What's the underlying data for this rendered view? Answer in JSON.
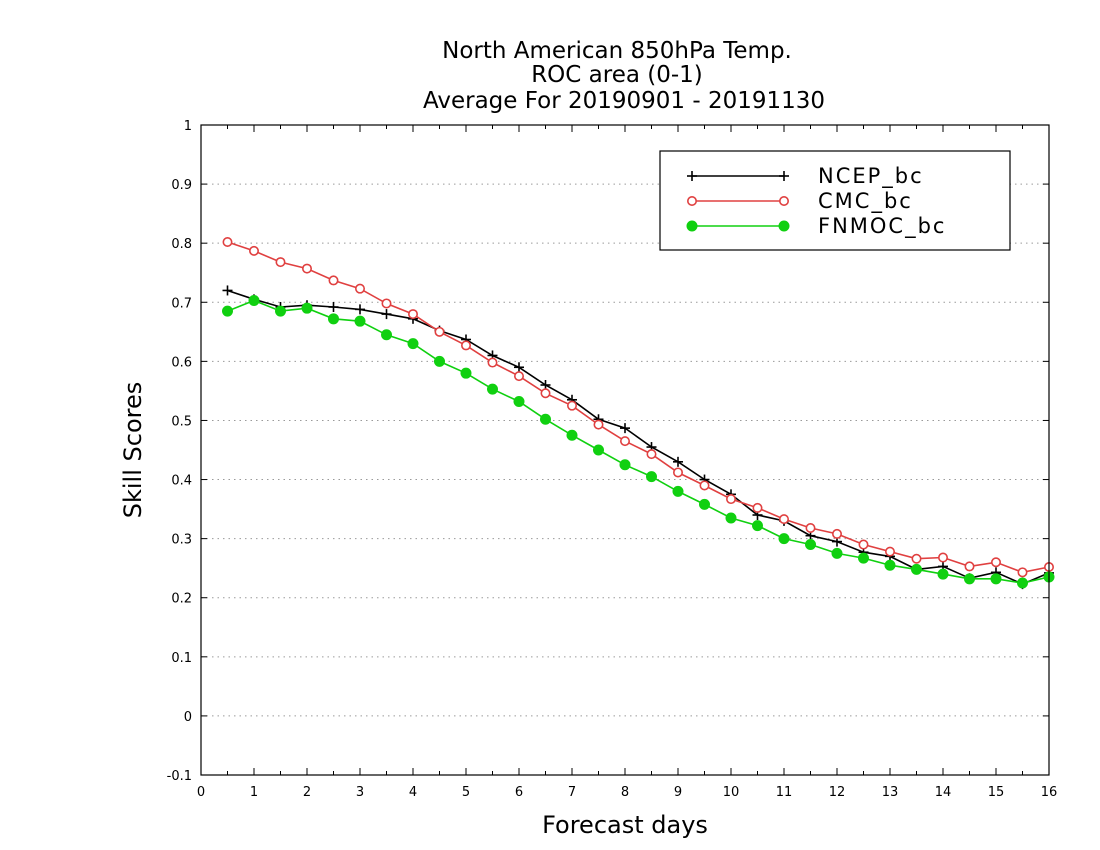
{
  "chart_data": {
    "type": "line",
    "title": [
      "North American 850hPa Temp.",
      "ROC area (0-1)",
      "Average For 20190901 - 20191130"
    ],
    "xlabel": "Forecast days",
    "ylabel": "Skill Scores",
    "xlim": [
      0,
      16
    ],
    "ylim": [
      -0.1,
      1
    ],
    "x_ticks": [
      0,
      1,
      2,
      3,
      4,
      5,
      6,
      7,
      8,
      9,
      10,
      11,
      12,
      13,
      14,
      15,
      16
    ],
    "x_tick_labels": [
      "0",
      "1",
      "2",
      "3",
      "4",
      "5",
      "6",
      "7",
      "8",
      "9",
      "10",
      "11",
      "12",
      "13",
      "14",
      "15",
      "16"
    ],
    "y_ticks": [
      -0.1,
      0,
      0.1,
      0.2,
      0.3,
      0.4,
      0.5,
      0.6,
      0.7,
      0.8,
      0.9,
      1
    ],
    "y_tick_labels": [
      "-0.1",
      "0",
      "0.1",
      "0.2",
      "0.3",
      "0.4",
      "0.5",
      "0.6",
      "0.7",
      "0.8",
      "0.9",
      "1"
    ],
    "grid": "horizontal dotted",
    "legend_position": "top-right",
    "x": [
      0.5,
      1,
      1.5,
      2,
      2.5,
      3,
      3.5,
      4,
      4.5,
      5,
      5.5,
      6,
      6.5,
      7,
      7.5,
      8,
      8.5,
      9,
      9.5,
      10,
      10.5,
      11,
      11.5,
      12,
      12.5,
      13,
      13.5,
      14,
      14.5,
      15,
      15.5,
      16
    ],
    "series": [
      {
        "name": "NCEP_bc",
        "color": "#000000",
        "marker": "plus",
        "values": [
          0.72,
          0.705,
          0.692,
          0.695,
          0.692,
          0.688,
          0.68,
          0.672,
          0.652,
          0.637,
          0.61,
          0.59,
          0.56,
          0.535,
          0.502,
          0.487,
          0.455,
          0.43,
          0.4,
          0.375,
          0.34,
          0.33,
          0.305,
          0.295,
          0.277,
          0.27,
          0.248,
          0.253,
          0.233,
          0.243,
          0.223,
          0.242
        ]
      },
      {
        "name": "CMC_bc",
        "color": "#e04040",
        "marker": "open-circle",
        "values": [
          0.802,
          0.787,
          0.768,
          0.757,
          0.737,
          0.723,
          0.698,
          0.68,
          0.65,
          0.627,
          0.598,
          0.575,
          0.546,
          0.525,
          0.493,
          0.465,
          0.443,
          0.412,
          0.39,
          0.367,
          0.352,
          0.333,
          0.318,
          0.308,
          0.29,
          0.278,
          0.266,
          0.268,
          0.253,
          0.26,
          0.243,
          0.252
        ]
      },
      {
        "name": "FNMOC_bc",
        "color": "#10d010",
        "marker": "filled-circle",
        "values": [
          0.685,
          0.703,
          0.685,
          0.69,
          0.672,
          0.668,
          0.645,
          0.63,
          0.6,
          0.58,
          0.553,
          0.532,
          0.502,
          0.475,
          0.45,
          0.425,
          0.405,
          0.38,
          0.358,
          0.335,
          0.322,
          0.3,
          0.29,
          0.275,
          0.267,
          0.255,
          0.248,
          0.24,
          0.232,
          0.232,
          0.225,
          0.235
        ]
      }
    ]
  }
}
